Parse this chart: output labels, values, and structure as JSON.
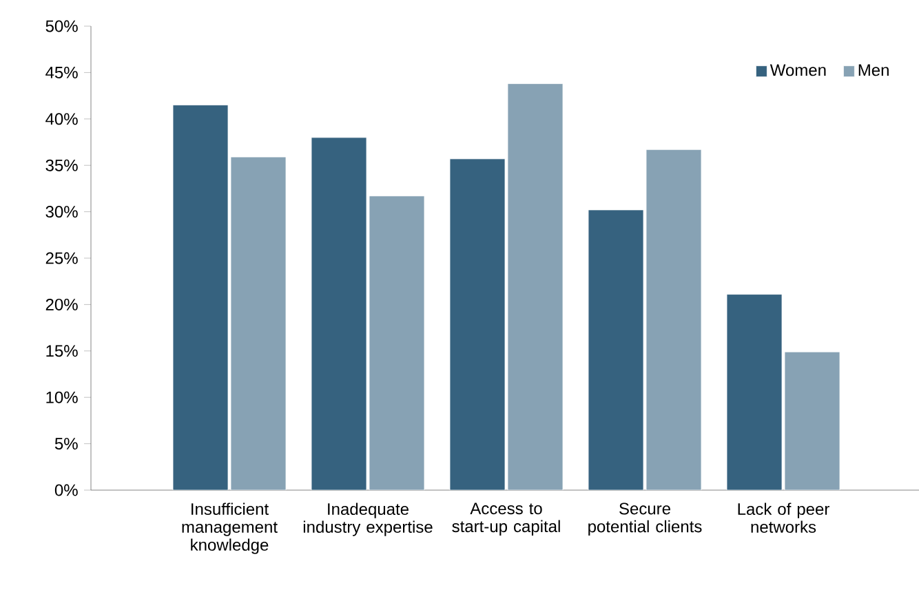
{
  "chart_data": {
    "type": "bar",
    "categories": [
      "Insufficient management knowledge",
      "Inadequate industry expertise",
      "Access to start-up capital",
      "Secure potential clients",
      "Lack of peer networks"
    ],
    "series": [
      {
        "name": "Women",
        "color": "#36627f",
        "values": [
          41.5,
          38.0,
          35.7,
          30.2,
          21.1
        ]
      },
      {
        "name": "Men",
        "color": "#87a2b4",
        "values": [
          35.9,
          31.7,
          43.8,
          36.7,
          14.9
        ]
      }
    ],
    "ylim": [
      0,
      50
    ],
    "yticks": [
      {
        "value": 0,
        "label": "0%"
      },
      {
        "value": 5,
        "label": "5%"
      },
      {
        "value": 10,
        "label": "10%"
      },
      {
        "value": 15,
        "label": "15%"
      },
      {
        "value": 20,
        "label": "20%"
      },
      {
        "value": 25,
        "label": "25%"
      },
      {
        "value": 30,
        "label": "30%"
      },
      {
        "value": 35,
        "label": "35%"
      },
      {
        "value": 40,
        "label": "40%"
      },
      {
        "value": 45,
        "label": "45%"
      },
      {
        "value": 50,
        "label": "50%"
      }
    ],
    "grid": false,
    "legend": "top right"
  }
}
